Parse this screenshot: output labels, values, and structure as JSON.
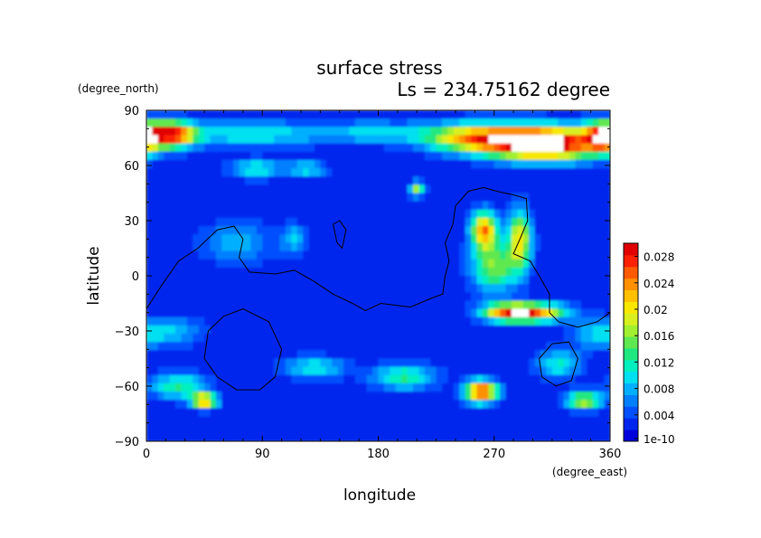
{
  "chart_data": {
    "type": "heatmap",
    "title": "surface stress",
    "subtitle": "Ls = 234.75162 degree",
    "xlabel": "longitude",
    "ylabel": "latitude",
    "x_units": "(degree_east)",
    "y_units": "(degree_north)",
    "xlim": [
      0,
      360
    ],
    "ylim": [
      -90,
      90
    ],
    "x_ticks": [
      "0",
      "90",
      "180",
      "270",
      "360"
    ],
    "y_ticks": [
      "90",
      "60",
      "30",
      "0",
      "−30",
      "−60",
      "−90"
    ],
    "grid": false,
    "colorbar": {
      "placement": "right",
      "min": 0,
      "max": 0.03,
      "tick_labels": [
        "1e-10",
        "0.004",
        "0.008",
        "0.012",
        "0.016",
        "0.02",
        "0.024",
        "0.028"
      ],
      "colors": [
        "#0000dd",
        "#0026ee",
        "#0050ff",
        "#0080ff",
        "#00b0ff",
        "#00e0f0",
        "#00f0c0",
        "#20e880",
        "#60e850",
        "#a0f030",
        "#d8f020",
        "#f8e800",
        "#ffc000",
        "#ff9000",
        "#ff5a00",
        "#ff2000",
        "#e00000"
      ]
    },
    "features": [
      {
        "lon": 20,
        "lat": 77,
        "value": 0.024,
        "spread_lon": 18,
        "spread_lat": 7
      },
      {
        "lon": 80,
        "lat": 77,
        "value": 0.009,
        "spread_lon": 55,
        "spread_lat": 7
      },
      {
        "lon": 175,
        "lat": 78,
        "value": 0.007,
        "spread_lon": 45,
        "spread_lat": 6
      },
      {
        "lon": 255,
        "lat": 75,
        "value": 0.02,
        "spread_lon": 40,
        "spread_lat": 8
      },
      {
        "lon": 310,
        "lat": 72,
        "value": 0.032,
        "spread_lon": 42,
        "spread_lat": 9
      },
      {
        "lon": 355,
        "lat": 76,
        "value": 0.022,
        "spread_lon": 14,
        "spread_lat": 8
      },
      {
        "lon": 85,
        "lat": 58,
        "value": 0.01,
        "spread_lon": 20,
        "spread_lat": 5
      },
      {
        "lon": 125,
        "lat": 58,
        "value": 0.008,
        "spread_lon": 15,
        "spread_lat": 5
      },
      {
        "lon": 210,
        "lat": 47,
        "value": 0.015,
        "spread_lon": 6,
        "spread_lat": 4
      },
      {
        "lon": 262,
        "lat": 25,
        "value": 0.022,
        "spread_lon": 10,
        "spread_lat": 10
      },
      {
        "lon": 290,
        "lat": 20,
        "value": 0.018,
        "spread_lon": 9,
        "spread_lat": 16
      },
      {
        "lon": 270,
        "lat": 5,
        "value": 0.014,
        "spread_lon": 18,
        "spread_lat": 14
      },
      {
        "lon": 300,
        "lat": -20,
        "value": 0.02,
        "spread_lon": 28,
        "spread_lat": 5
      },
      {
        "lon": 280,
        "lat": -20,
        "value": 0.014,
        "spread_lon": 22,
        "spread_lat": 5
      },
      {
        "lon": 70,
        "lat": 18,
        "value": 0.006,
        "spread_lon": 30,
        "spread_lat": 12
      },
      {
        "lon": 115,
        "lat": 20,
        "value": 0.007,
        "spread_lon": 10,
        "spread_lat": 8
      },
      {
        "lon": 260,
        "lat": -63,
        "value": 0.026,
        "spread_lon": 13,
        "spread_lat": 6
      },
      {
        "lon": 45,
        "lat": -68,
        "value": 0.022,
        "spread_lon": 10,
        "spread_lat": 4
      },
      {
        "lon": 25,
        "lat": -60,
        "value": 0.011,
        "spread_lon": 22,
        "spread_lat": 7
      },
      {
        "lon": 130,
        "lat": -50,
        "value": 0.009,
        "spread_lon": 25,
        "spread_lat": 6
      },
      {
        "lon": 200,
        "lat": -55,
        "value": 0.011,
        "spread_lon": 25,
        "spread_lat": 7
      },
      {
        "lon": 340,
        "lat": -68,
        "value": 0.016,
        "spread_lon": 14,
        "spread_lat": 5
      },
      {
        "lon": 320,
        "lat": -48,
        "value": 0.009,
        "spread_lon": 18,
        "spread_lat": 8
      },
      {
        "lon": 20,
        "lat": -30,
        "value": 0.007,
        "spread_lon": 25,
        "spread_lat": 8
      },
      {
        "lon": 350,
        "lat": -32,
        "value": 0.007,
        "spread_lon": 20,
        "spread_lat": 8
      }
    ],
    "contours": [
      [
        [
          0,
          -18
        ],
        [
          12,
          -5
        ],
        [
          25,
          8
        ],
        [
          40,
          15
        ],
        [
          55,
          25
        ],
        [
          68,
          27
        ],
        [
          75,
          20
        ],
        [
          72,
          10
        ],
        [
          80,
          2
        ],
        [
          100,
          1
        ],
        [
          115,
          3
        ],
        [
          130,
          -3
        ],
        [
          145,
          -10
        ],
        [
          160,
          -15
        ],
        [
          170,
          -19
        ],
        [
          182,
          -15
        ],
        [
          205,
          -17
        ],
        [
          222,
          -12
        ],
        [
          230,
          -10
        ],
        [
          232,
          0
        ],
        [
          235,
          8
        ],
        [
          232,
          18
        ],
        [
          238,
          28
        ],
        [
          240,
          38
        ],
        [
          250,
          46
        ],
        [
          262,
          48
        ],
        [
          272,
          46
        ],
        [
          285,
          44
        ],
        [
          295,
          42
        ],
        [
          296,
          30
        ],
        [
          290,
          20
        ],
        [
          285,
          12
        ],
        [
          298,
          8
        ],
        [
          305,
          0
        ],
        [
          313,
          -10
        ],
        [
          313,
          -20
        ],
        [
          320,
          -25
        ],
        [
          335,
          -28
        ],
        [
          350,
          -25
        ],
        [
          360,
          -20
        ]
      ],
      [
        [
          145,
          28
        ],
        [
          150,
          30
        ],
        [
          155,
          25
        ],
        [
          152,
          15
        ],
        [
          148,
          18
        ],
        [
          145,
          28
        ]
      ],
      [
        [
          48,
          -30
        ],
        [
          60,
          -22
        ],
        [
          75,
          -18
        ],
        [
          95,
          -25
        ],
        [
          105,
          -40
        ],
        [
          100,
          -55
        ],
        [
          88,
          -62
        ],
        [
          70,
          -62
        ],
        [
          55,
          -55
        ],
        [
          45,
          -45
        ],
        [
          48,
          -30
        ]
      ],
      [
        [
          305,
          -45
        ],
        [
          315,
          -37
        ],
        [
          328,
          -36
        ],
        [
          335,
          -45
        ],
        [
          330,
          -57
        ],
        [
          318,
          -60
        ],
        [
          307,
          -55
        ],
        [
          305,
          -45
        ]
      ]
    ]
  }
}
